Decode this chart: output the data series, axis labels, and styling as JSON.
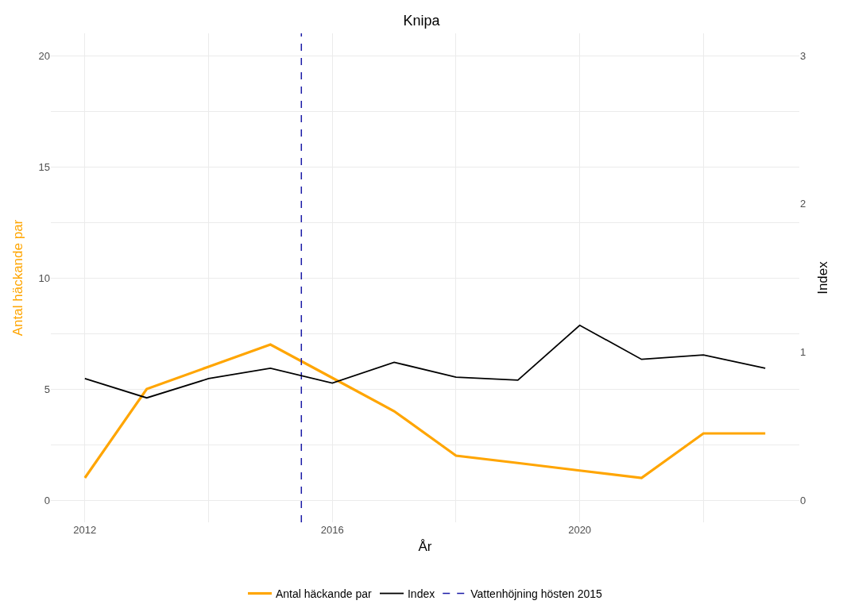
{
  "chart_data": {
    "type": "line",
    "title": "Knipa",
    "xlabel": "År",
    "ylabel": "Antal häckande par",
    "y2label": "Index",
    "x": [
      2012,
      2013,
      2014,
      2015,
      2016,
      2017,
      2018,
      2019,
      2020,
      2021,
      2022,
      2023
    ],
    "series": [
      {
        "name": "Antal häckande par",
        "color": "#ffa500",
        "values": [
          1,
          5,
          6,
          7,
          5.5,
          4,
          2,
          1.67,
          1.33,
          1,
          3,
          3
        ]
      },
      {
        "name": "Index",
        "color": "#000000",
        "axis": "y2",
        "values": [
          0.82,
          0.69,
          0.82,
          0.89,
          0.79,
          0.93,
          0.83,
          0.81,
          1.18,
          0.95,
          0.98,
          0.89
        ]
      }
    ],
    "xlim": [
      2011.45,
      2023.55
    ],
    "xticks": [
      2012,
      {
        "value": 2014,
        "label": null
      },
      2016,
      {
        "value": 2018,
        "label": null
      },
      2020,
      {
        "value": 2022,
        "label": null
      }
    ],
    "ylim": [
      -1,
      21
    ],
    "yticks": [
      0,
      {
        "value": 2.5,
        "label": null
      },
      5,
      {
        "value": 7.5,
        "label": null
      },
      10,
      {
        "value": 12.5,
        "label": null
      },
      15,
      {
        "value": 17.5,
        "label": null
      },
      20
    ],
    "y2lim": [
      -0.15,
      3.15
    ],
    "y2ticks": [
      0,
      1,
      2,
      3
    ],
    "ref_lines": [
      {
        "axis": "x",
        "value": 2015.5,
        "label": "Vattenhöjning hösten 2015",
        "color": "#1a1aa6",
        "line_style": "dashed"
      }
    ],
    "grid": true,
    "legend": "bottom",
    "marker": "none",
    "line_style": "solid"
  }
}
